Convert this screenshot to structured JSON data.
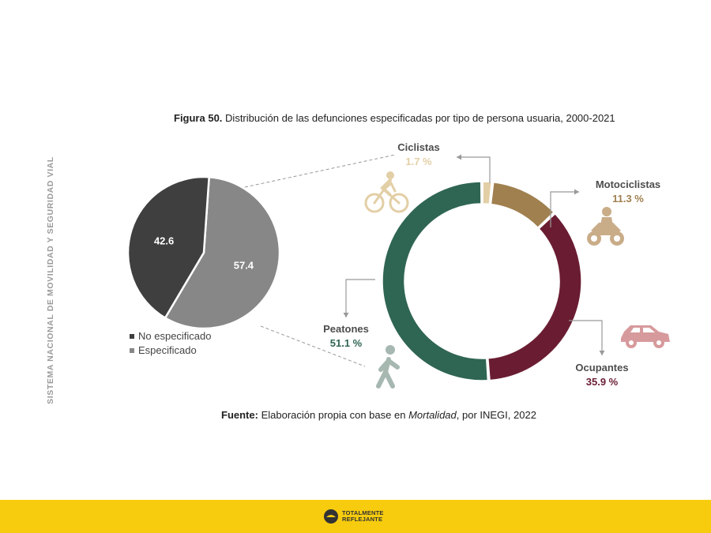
{
  "side_title": "SISTEMA NACIONAL DE MOVILIDAD Y SEGURIDAD VIAL",
  "figure": {
    "label": "Figura 50.",
    "title": "Distribución de las defunciones especificadas por tipo de persona usuaria, 2000-2021"
  },
  "source": {
    "label": "Fuente:",
    "text_before": "Elaboración propia con base en",
    "italic": "Mortalidad",
    "text_after": ", por INEGI, 2022"
  },
  "footer": {
    "logo_line1": "TOTALMENTE",
    "logo_line2": "REFLEJANTE",
    "color": "#f7cc0e"
  },
  "chart_data": [
    {
      "type": "pie",
      "slices": [
        {
          "label": "No especificado",
          "value": 42.6,
          "color": "#3f3f3f"
        },
        {
          "label": "Especificado",
          "value": 57.4,
          "color": "#878787"
        }
      ],
      "legend": [
        "No especificado",
        "Especificado"
      ],
      "legend_position": "bottom-left"
    },
    {
      "type": "pie",
      "variant": "donut",
      "slices": [
        {
          "label": "Ciclistas",
          "value": 1.7,
          "display": "1.7 %",
          "color": "#e3cfa6",
          "icon": "bicycle-icon"
        },
        {
          "label": "Motociclistas",
          "value": 11.3,
          "display": "11.3 %",
          "color": "#a0804f",
          "icon": "motorcycle-icon"
        },
        {
          "label": "Ocupantes",
          "value": 35.9,
          "display": "35.9 %",
          "color": "#6a1d32",
          "icon": "car-icon"
        },
        {
          "label": "Peatones",
          "value": 51.1,
          "display": "51.1 %",
          "color": "#2f6553",
          "icon": "pedestrian-icon"
        }
      ]
    }
  ]
}
